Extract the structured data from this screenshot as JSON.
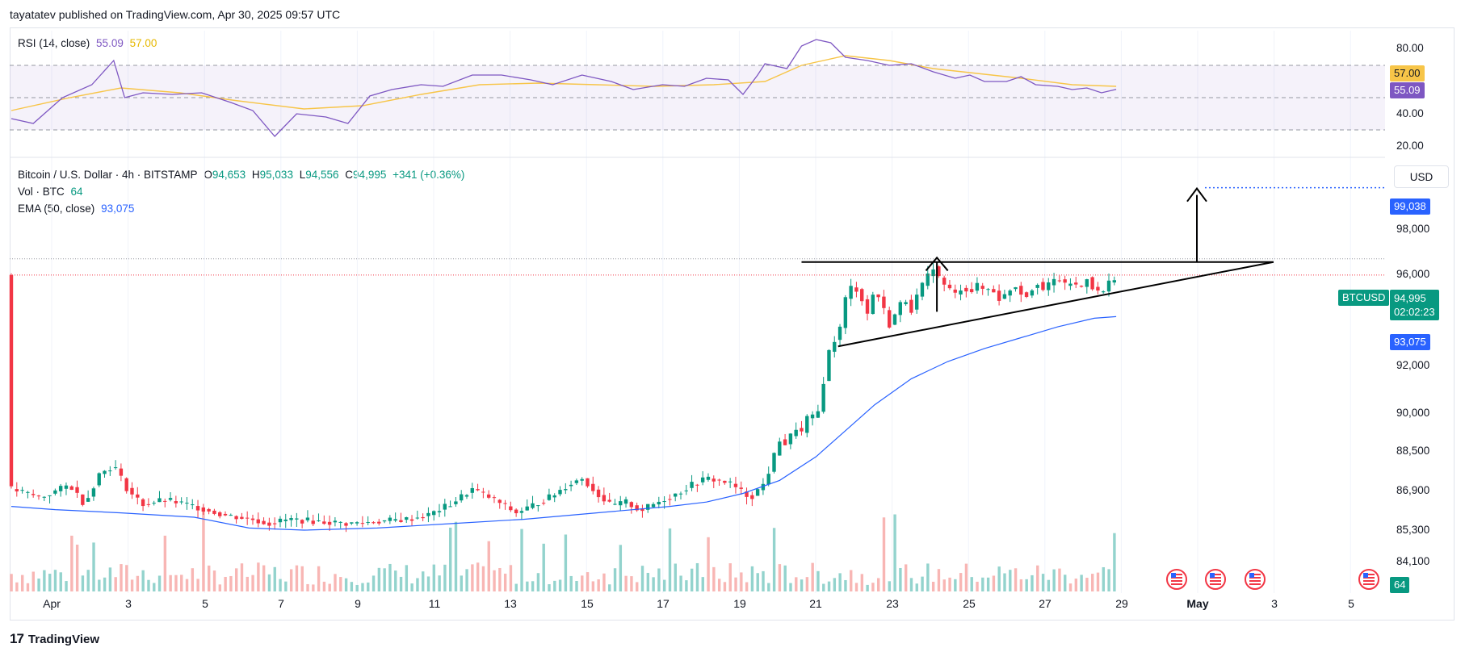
{
  "header": {
    "published": "tayatatev published on TradingView.com, Apr 30, 2025 09:57 UTC"
  },
  "rsi_legend": {
    "label": "RSI (14, close)",
    "value": "55.09",
    "ma": "57.00"
  },
  "price_legend": {
    "symbol": "Bitcoin / U.S. Dollar · 4h · BITSTAMP",
    "o_label": "O",
    "o": "94,653",
    "h_label": "H",
    "h": "95,033",
    "l_label": "L",
    "l": "94,556",
    "c_label": "C",
    "c": "94,995",
    "change": "+341 (+0.36%)",
    "vol_label": "Vol · BTC",
    "vol": "64",
    "ema_label": "EMA (50, close)",
    "ema": "93,075"
  },
  "currency_button": "USD",
  "rsi_axis": [
    "80.00",
    "40.00",
    "20.00"
  ],
  "rsi_tags": {
    "ma": "57.00",
    "rsi": "55.09"
  },
  "price_axis": [
    "98,000",
    "96,000",
    "92,000",
    "90,000",
    "88,500",
    "86,900",
    "85,300",
    "84,100"
  ],
  "price_tags": {
    "target": "99,038",
    "symbol": "BTCUSD",
    "price": "94,995",
    "countdown": "02:02:23",
    "ema": "93,075",
    "volume": "64"
  },
  "x_axis": [
    "Apr",
    "3",
    "5",
    "7",
    "9",
    "11",
    "13",
    "15",
    "17",
    "19",
    "21",
    "23",
    "25",
    "27",
    "29",
    "May",
    "3",
    "5"
  ],
  "branding": "TradingView",
  "colors": {
    "up": "#089981",
    "down": "#f23645",
    "ema": "#2962ff",
    "rsi": "#7e57c2",
    "rsi_ma": "#f7c548",
    "pattern": "#000000"
  },
  "chart_data": {
    "type": "candlestick",
    "symbol": "BTCUSD",
    "timeframe": "4h",
    "ylim": [
      83500,
      100500
    ],
    "ema50": [
      [
        0,
        84300
      ],
      [
        12,
        84150
      ],
      [
        30,
        84000
      ],
      [
        50,
        83800
      ],
      [
        65,
        83300
      ],
      [
        80,
        83200
      ],
      [
        100,
        83300
      ],
      [
        120,
        83500
      ],
      [
        140,
        83700
      ],
      [
        160,
        84000
      ],
      [
        180,
        84300
      ],
      [
        190,
        84500
      ],
      [
        200,
        84900
      ],
      [
        210,
        85500
      ],
      [
        220,
        86600
      ],
      [
        228,
        87800
      ],
      [
        236,
        89000
      ],
      [
        246,
        90200
      ],
      [
        256,
        91000
      ],
      [
        266,
        91600
      ],
      [
        276,
        92100
      ],
      [
        286,
        92600
      ],
      [
        296,
        93000
      ],
      [
        302,
        93075
      ]
    ],
    "close_path": [
      [
        0,
        85100
      ],
      [
        8,
        84700
      ],
      [
        16,
        85300
      ],
      [
        20,
        84400
      ],
      [
        24,
        85800
      ],
      [
        28,
        86200
      ],
      [
        32,
        85000
      ],
      [
        36,
        84400
      ],
      [
        42,
        84600
      ],
      [
        50,
        84300
      ],
      [
        58,
        83900
      ],
      [
        66,
        83700
      ],
      [
        70,
        83500
      ],
      [
        76,
        83700
      ],
      [
        84,
        83600
      ],
      [
        92,
        83500
      ],
      [
        100,
        83600
      ],
      [
        108,
        83700
      ],
      [
        114,
        83900
      ],
      [
        120,
        84400
      ],
      [
        126,
        85100
      ],
      [
        132,
        84600
      ],
      [
        138,
        84000
      ],
      [
        142,
        84300
      ],
      [
        148,
        84800
      ],
      [
        152,
        85300
      ],
      [
        156,
        85600
      ],
      [
        160,
        84900
      ],
      [
        164,
        84300
      ],
      [
        168,
        84500
      ],
      [
        172,
        84100
      ],
      [
        178,
        84600
      ],
      [
        182,
        84900
      ],
      [
        186,
        85300
      ],
      [
        190,
        85600
      ],
      [
        196,
        85400
      ],
      [
        202,
        84700
      ],
      [
        206,
        85400
      ],
      [
        208,
        86400
      ],
      [
        210,
        87400
      ],
      [
        212,
        87100
      ],
      [
        214,
        88000
      ],
      [
        216,
        87700
      ],
      [
        218,
        88600
      ],
      [
        220,
        88200
      ],
      [
        222,
        90100
      ],
      [
        224,
        91900
      ],
      [
        226,
        92100
      ],
      [
        228,
        93900
      ],
      [
        230,
        94600
      ],
      [
        232,
        94100
      ],
      [
        234,
        93200
      ],
      [
        236,
        94400
      ],
      [
        238,
        93600
      ],
      [
        240,
        92700
      ],
      [
        242,
        93300
      ],
      [
        244,
        94000
      ],
      [
        246,
        93400
      ],
      [
        248,
        94200
      ],
      [
        250,
        94800
      ],
      [
        252,
        95400
      ],
      [
        254,
        94700
      ],
      [
        256,
        94400
      ],
      [
        258,
        94100
      ],
      [
        260,
        94500
      ],
      [
        262,
        94200
      ],
      [
        264,
        94500
      ],
      [
        266,
        94300
      ],
      [
        268,
        94400
      ],
      [
        270,
        93900
      ],
      [
        272,
        94100
      ],
      [
        274,
        94600
      ],
      [
        276,
        94200
      ],
      [
        278,
        94000
      ],
      [
        280,
        94800
      ],
      [
        282,
        94300
      ],
      [
        284,
        94600
      ],
      [
        286,
        94900
      ],
      [
        288,
        94500
      ],
      [
        290,
        94700
      ],
      [
        292,
        94300
      ],
      [
        294,
        94900
      ],
      [
        296,
        94300
      ],
      [
        298,
        94100
      ],
      [
        300,
        94653
      ],
      [
        302,
        94995
      ]
    ],
    "volume_bars": 302,
    "pattern": {
      "type": "ascending triangle",
      "resistance": 95600,
      "support_start": [
        226,
        91700
      ],
      "support_end": [
        345,
        95600
      ],
      "target": 99038
    },
    "rsi": {
      "ylim": [
        15,
        90
      ],
      "bands": [
        30,
        50,
        70
      ],
      "last": 55.09,
      "ma_last": 57.0,
      "values": [
        [
          0,
          37
        ],
        [
          6,
          34
        ],
        [
          14,
          50
        ],
        [
          22,
          58
        ],
        [
          28,
          73
        ],
        [
          31,
          50
        ],
        [
          36,
          53
        ],
        [
          44,
          52
        ],
        [
          52,
          53
        ],
        [
          60,
          47
        ],
        [
          66,
          42
        ],
        [
          72,
          26
        ],
        [
          78,
          40
        ],
        [
          86,
          38
        ],
        [
          92,
          34
        ],
        [
          98,
          51
        ],
        [
          104,
          55
        ],
        [
          112,
          58
        ],
        [
          118,
          57
        ],
        [
          126,
          64
        ],
        [
          134,
          64
        ],
        [
          142,
          61
        ],
        [
          148,
          58
        ],
        [
          156,
          64
        ],
        [
          164,
          60
        ],
        [
          170,
          55
        ],
        [
          178,
          58
        ],
        [
          184,
          57
        ],
        [
          190,
          62
        ],
        [
          196,
          61
        ],
        [
          200,
          52
        ],
        [
          204,
          64
        ],
        [
          206,
          71
        ],
        [
          212,
          68
        ],
        [
          216,
          82
        ],
        [
          220,
          86
        ],
        [
          224,
          84
        ],
        [
          228,
          75
        ],
        [
          234,
          73
        ],
        [
          240,
          70
        ],
        [
          246,
          71
        ],
        [
          252,
          66
        ],
        [
          258,
          62
        ],
        [
          262,
          64
        ],
        [
          266,
          60
        ],
        [
          272,
          60
        ],
        [
          276,
          63
        ],
        [
          280,
          58
        ],
        [
          286,
          57
        ],
        [
          290,
          55
        ],
        [
          294,
          56
        ],
        [
          298,
          53
        ],
        [
          302,
          55.09
        ]
      ],
      "ma": [
        [
          0,
          42
        ],
        [
          16,
          50
        ],
        [
          30,
          56
        ],
        [
          46,
          53
        ],
        [
          62,
          48
        ],
        [
          80,
          43
        ],
        [
          96,
          45
        ],
        [
          112,
          52
        ],
        [
          128,
          58
        ],
        [
          144,
          59
        ],
        [
          160,
          58
        ],
        [
          176,
          57
        ],
        [
          192,
          58
        ],
        [
          206,
          60
        ],
        [
          216,
          70
        ],
        [
          228,
          76
        ],
        [
          240,
          73
        ],
        [
          252,
          68
        ],
        [
          264,
          65
        ],
        [
          276,
          62
        ],
        [
          290,
          58
        ],
        [
          302,
          57.0
        ]
      ]
    }
  }
}
